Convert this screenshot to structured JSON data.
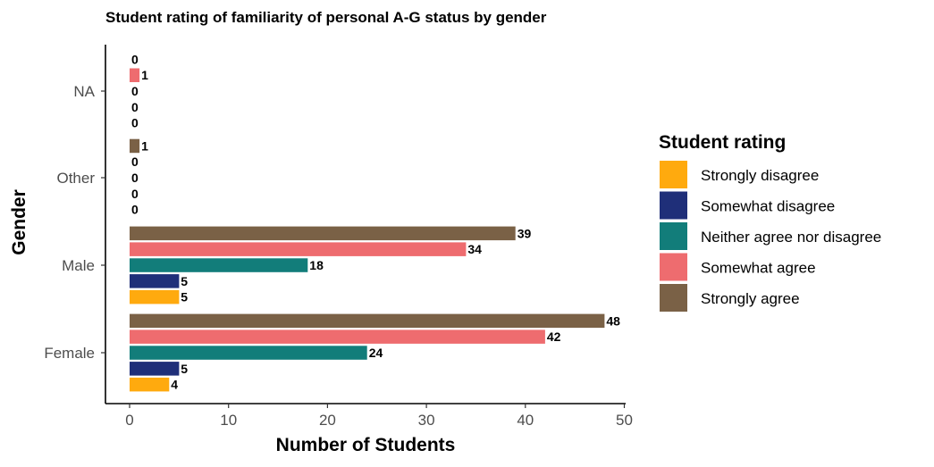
{
  "chart_data": {
    "type": "bar",
    "orientation": "horizontal",
    "title": "Student rating of familiarity of personal A-G status by gender",
    "xlabel": "Number of Students",
    "ylabel": "Gender",
    "xlim": [
      0,
      50
    ],
    "x_ticks": [
      "0",
      "10",
      "20",
      "30",
      "40",
      "50"
    ],
    "grid": false,
    "legend": {
      "title": "Student rating",
      "position": "right"
    },
    "categories": [
      "Female",
      "Male",
      "Other",
      "NA"
    ],
    "series": [
      {
        "name": "Strongly disagree",
        "color": "#FFAA0E",
        "values": [
          4,
          5,
          0,
          0
        ]
      },
      {
        "name": "Somewhat disagree",
        "color": "#1F2F79",
        "values": [
          5,
          5,
          0,
          0
        ]
      },
      {
        "name": "Neither agree nor disagree",
        "color": "#127D7A",
        "values": [
          24,
          18,
          0,
          0
        ]
      },
      {
        "name": "Somewhat agree",
        "color": "#EE6C6F",
        "values": [
          42,
          34,
          0,
          1
        ]
      },
      {
        "name": "Strongly agree",
        "color": "#7A6146",
        "values": [
          48,
          39,
          1,
          0
        ]
      }
    ]
  }
}
